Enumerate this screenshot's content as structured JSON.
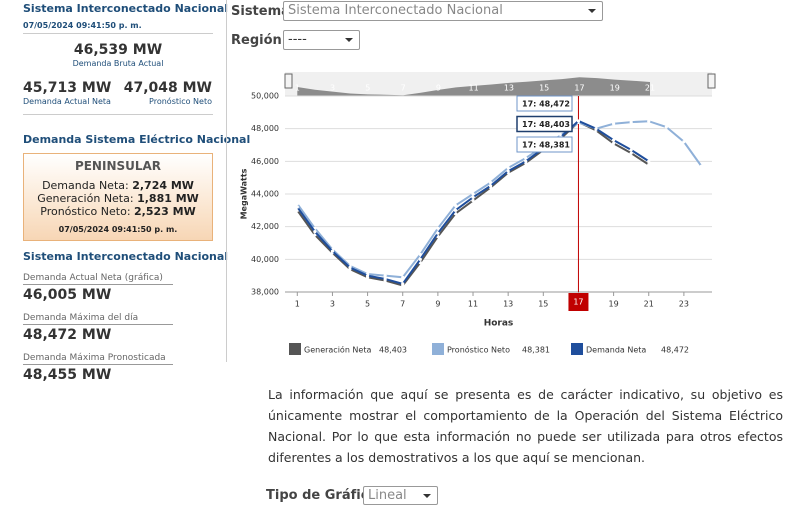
{
  "sidebar": {
    "title": "Sistema Interconectado Nacional",
    "timestamp": "07/05/2024 09:41:50 p. m.",
    "gross": {
      "value": "46,539 MW",
      "label": "Demanda Bruta Actual"
    },
    "actual": {
      "value": "45,713 MW",
      "label": "Demanda Actual Neta"
    },
    "forecast": {
      "value": "47,048 MW",
      "label": "Pronóstico Neto"
    },
    "sen_title": "Demanda Sistema Eléctrico Nacional",
    "peninsular": {
      "title": "PENINSULAR",
      "rows": [
        {
          "label": "Demanda Neta:",
          "value": "2,724 MW"
        },
        {
          "label": "Generación Neta:",
          "value": "1,881 MW"
        },
        {
          "label": "Pronóstico Neto:",
          "value": "2,523 MW"
        }
      ],
      "timestamp": "07/05/2024 09:41:50 p. m."
    },
    "sin_title": "Sistema Interconectado Nacional",
    "stats": [
      {
        "label": "Demanda Actual Neta (gráfica)",
        "value": "46,005 MW"
      },
      {
        "label": "Demanda Máxima del día",
        "value": "48,472 MW"
      },
      {
        "label": "Demanda Máxima Pronosticada",
        "value": "48,455 MW"
      }
    ]
  },
  "controls": {
    "system_label": "Sistema",
    "system_value": "Sistema Interconectado Nacional",
    "region_label": "Región",
    "region_value": "----"
  },
  "chart_data": {
    "type": "line",
    "x_label": "Horas",
    "y_label": "MegaWatts",
    "x": [
      1,
      2,
      3,
      4,
      5,
      6,
      7,
      8,
      9,
      10,
      11,
      12,
      13,
      14,
      15,
      16,
      17,
      18,
      19,
      20,
      21,
      22,
      23,
      24
    ],
    "xlim": [
      0.3,
      24.6
    ],
    "xticks": [
      1,
      3,
      5,
      7,
      9,
      11,
      13,
      15,
      17,
      19,
      21,
      23
    ],
    "ylim": [
      38000,
      50000
    ],
    "yticks": [
      {
        "value": 38000,
        "label": "38,000"
      },
      {
        "value": 40000,
        "label": "40,000"
      },
      {
        "value": 42000,
        "label": "42,000"
      },
      {
        "value": 44000,
        "label": "44,000"
      },
      {
        "value": 46000,
        "label": "46,000"
      },
      {
        "value": 48000,
        "label": "48,000"
      },
      {
        "value": 50000,
        "label": "50,000"
      }
    ],
    "grid": true,
    "highlight_x": 17,
    "series": [
      {
        "name": "Generación Neta",
        "color": "#555555",
        "value_label": "48,403",
        "tooltip": "17: 48,403",
        "values": [
          43000,
          41500,
          40400,
          39400,
          38900,
          38700,
          38400,
          39800,
          41400,
          42800,
          43600,
          44400,
          45300,
          45900,
          46700,
          47400,
          48403,
          47900,
          47100,
          46500,
          45800,
          null,
          null,
          null
        ]
      },
      {
        "name": "Pronóstico Neto",
        "color": "#8fb0d8",
        "value_label": "48,381",
        "tooltip": "17: 48,381",
        "values": [
          43400,
          41900,
          40600,
          39600,
          39100,
          39000,
          38900,
          40300,
          41900,
          43300,
          44000,
          44700,
          45600,
          46200,
          46900,
          47600,
          48381,
          48000,
          48300,
          48400,
          48455,
          48100,
          47200,
          45700
        ]
      },
      {
        "name": "Demanda Neta",
        "color": "#1f4e9c",
        "value_label": "48,472",
        "tooltip": "17: 48,472",
        "values": [
          43200,
          41700,
          40500,
          39500,
          39000,
          38800,
          38500,
          40000,
          41600,
          43000,
          43800,
          44500,
          45400,
          46000,
          46800,
          47500,
          48472,
          48000,
          47300,
          46700,
          46005,
          null,
          null,
          null
        ]
      }
    ]
  },
  "disclaimer": "La información que aquí se presenta es de carácter indicativo, su objetivo es únicamente mostrar el comportamiento de la Operación del Sistema Eléctrico Nacional. Por lo que esta información no puede ser utilizada para otros efectos diferentes a los demostrativos a los que aquí se mencionan.",
  "chart_type_control": {
    "label": "Tipo de Gráfica",
    "value": "Lineal"
  }
}
